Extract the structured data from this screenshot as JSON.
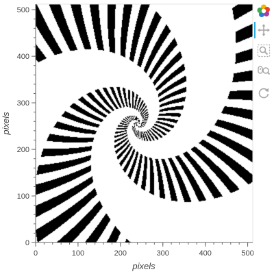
{
  "chart_data": {
    "type": "heatmap",
    "description_type": "image",
    "xlabel": "pixels",
    "ylabel": "pixels",
    "xlim": [
      0,
      512
    ],
    "ylim": [
      0,
      512
    ],
    "x_ticks": [
      0,
      100,
      200,
      300,
      400,
      500
    ],
    "y_ticks": [
      0,
      100,
      200,
      300,
      400,
      500
    ],
    "center": [
      240,
      255
    ],
    "colors": {
      "on": "#000000",
      "off": "#ffffff"
    },
    "grid": false,
    "legend": "none"
  },
  "toolbar": {
    "tools": [
      {
        "name": "bokeh-logo-icon",
        "active": false
      },
      {
        "name": "pan-icon",
        "active": true
      },
      {
        "name": "box-zoom-icon",
        "active": false
      },
      {
        "name": "wheel-zoom-icon",
        "active": false
      },
      {
        "name": "reset-icon",
        "active": false
      }
    ],
    "accent": "#26aae1",
    "icon_color": "#a8a8a8"
  }
}
